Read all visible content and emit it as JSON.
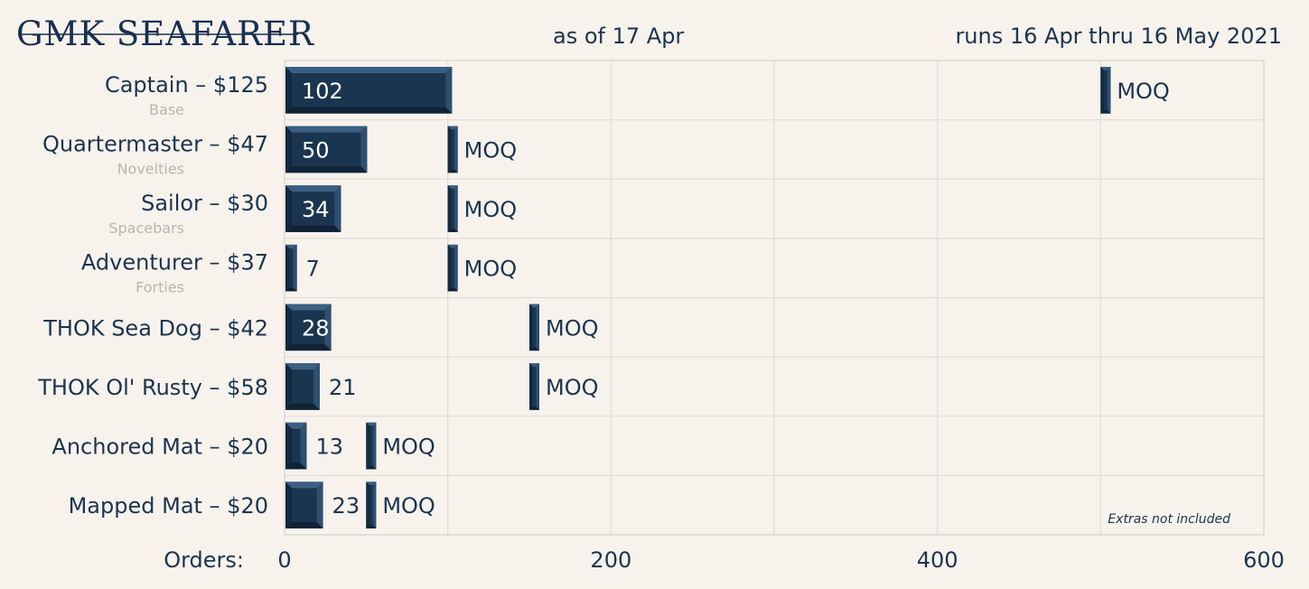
{
  "header": {
    "title": "GMK SEAFARER",
    "as_of": "as of 17 Apr",
    "runs": "runs 16 Apr thru 16 May 2021"
  },
  "colors": {
    "background": "#f7f2ec",
    "bar": "#1a3550",
    "bar_dark": "#0f2236",
    "bar_light": "#3a5f82",
    "text": "#1b3450"
  },
  "chart_data": {
    "type": "bar",
    "orientation": "horizontal",
    "categories": [
      "Captain – $125",
      "Quartermaster – $47",
      "Sailor – $30",
      "Adventurer – $37",
      "THOK Sea Dog – $42",
      "THOK Ol' Rusty – $58",
      "Anchored Mat – $20",
      "Mapped Mat – $20"
    ],
    "subtitles": [
      "Base",
      "Novelties",
      "Spacebars",
      "Forties",
      "",
      "",
      "",
      ""
    ],
    "values": [
      102,
      50,
      34,
      7,
      28,
      21,
      13,
      23
    ],
    "moq": [
      500,
      100,
      100,
      100,
      150,
      150,
      50,
      50
    ],
    "moq_label": "MOQ",
    "xlabel": "Orders:",
    "xlim": [
      0,
      600
    ],
    "xticks": [
      0,
      200,
      400,
      600
    ],
    "grid": true,
    "note": "Extras not included"
  }
}
